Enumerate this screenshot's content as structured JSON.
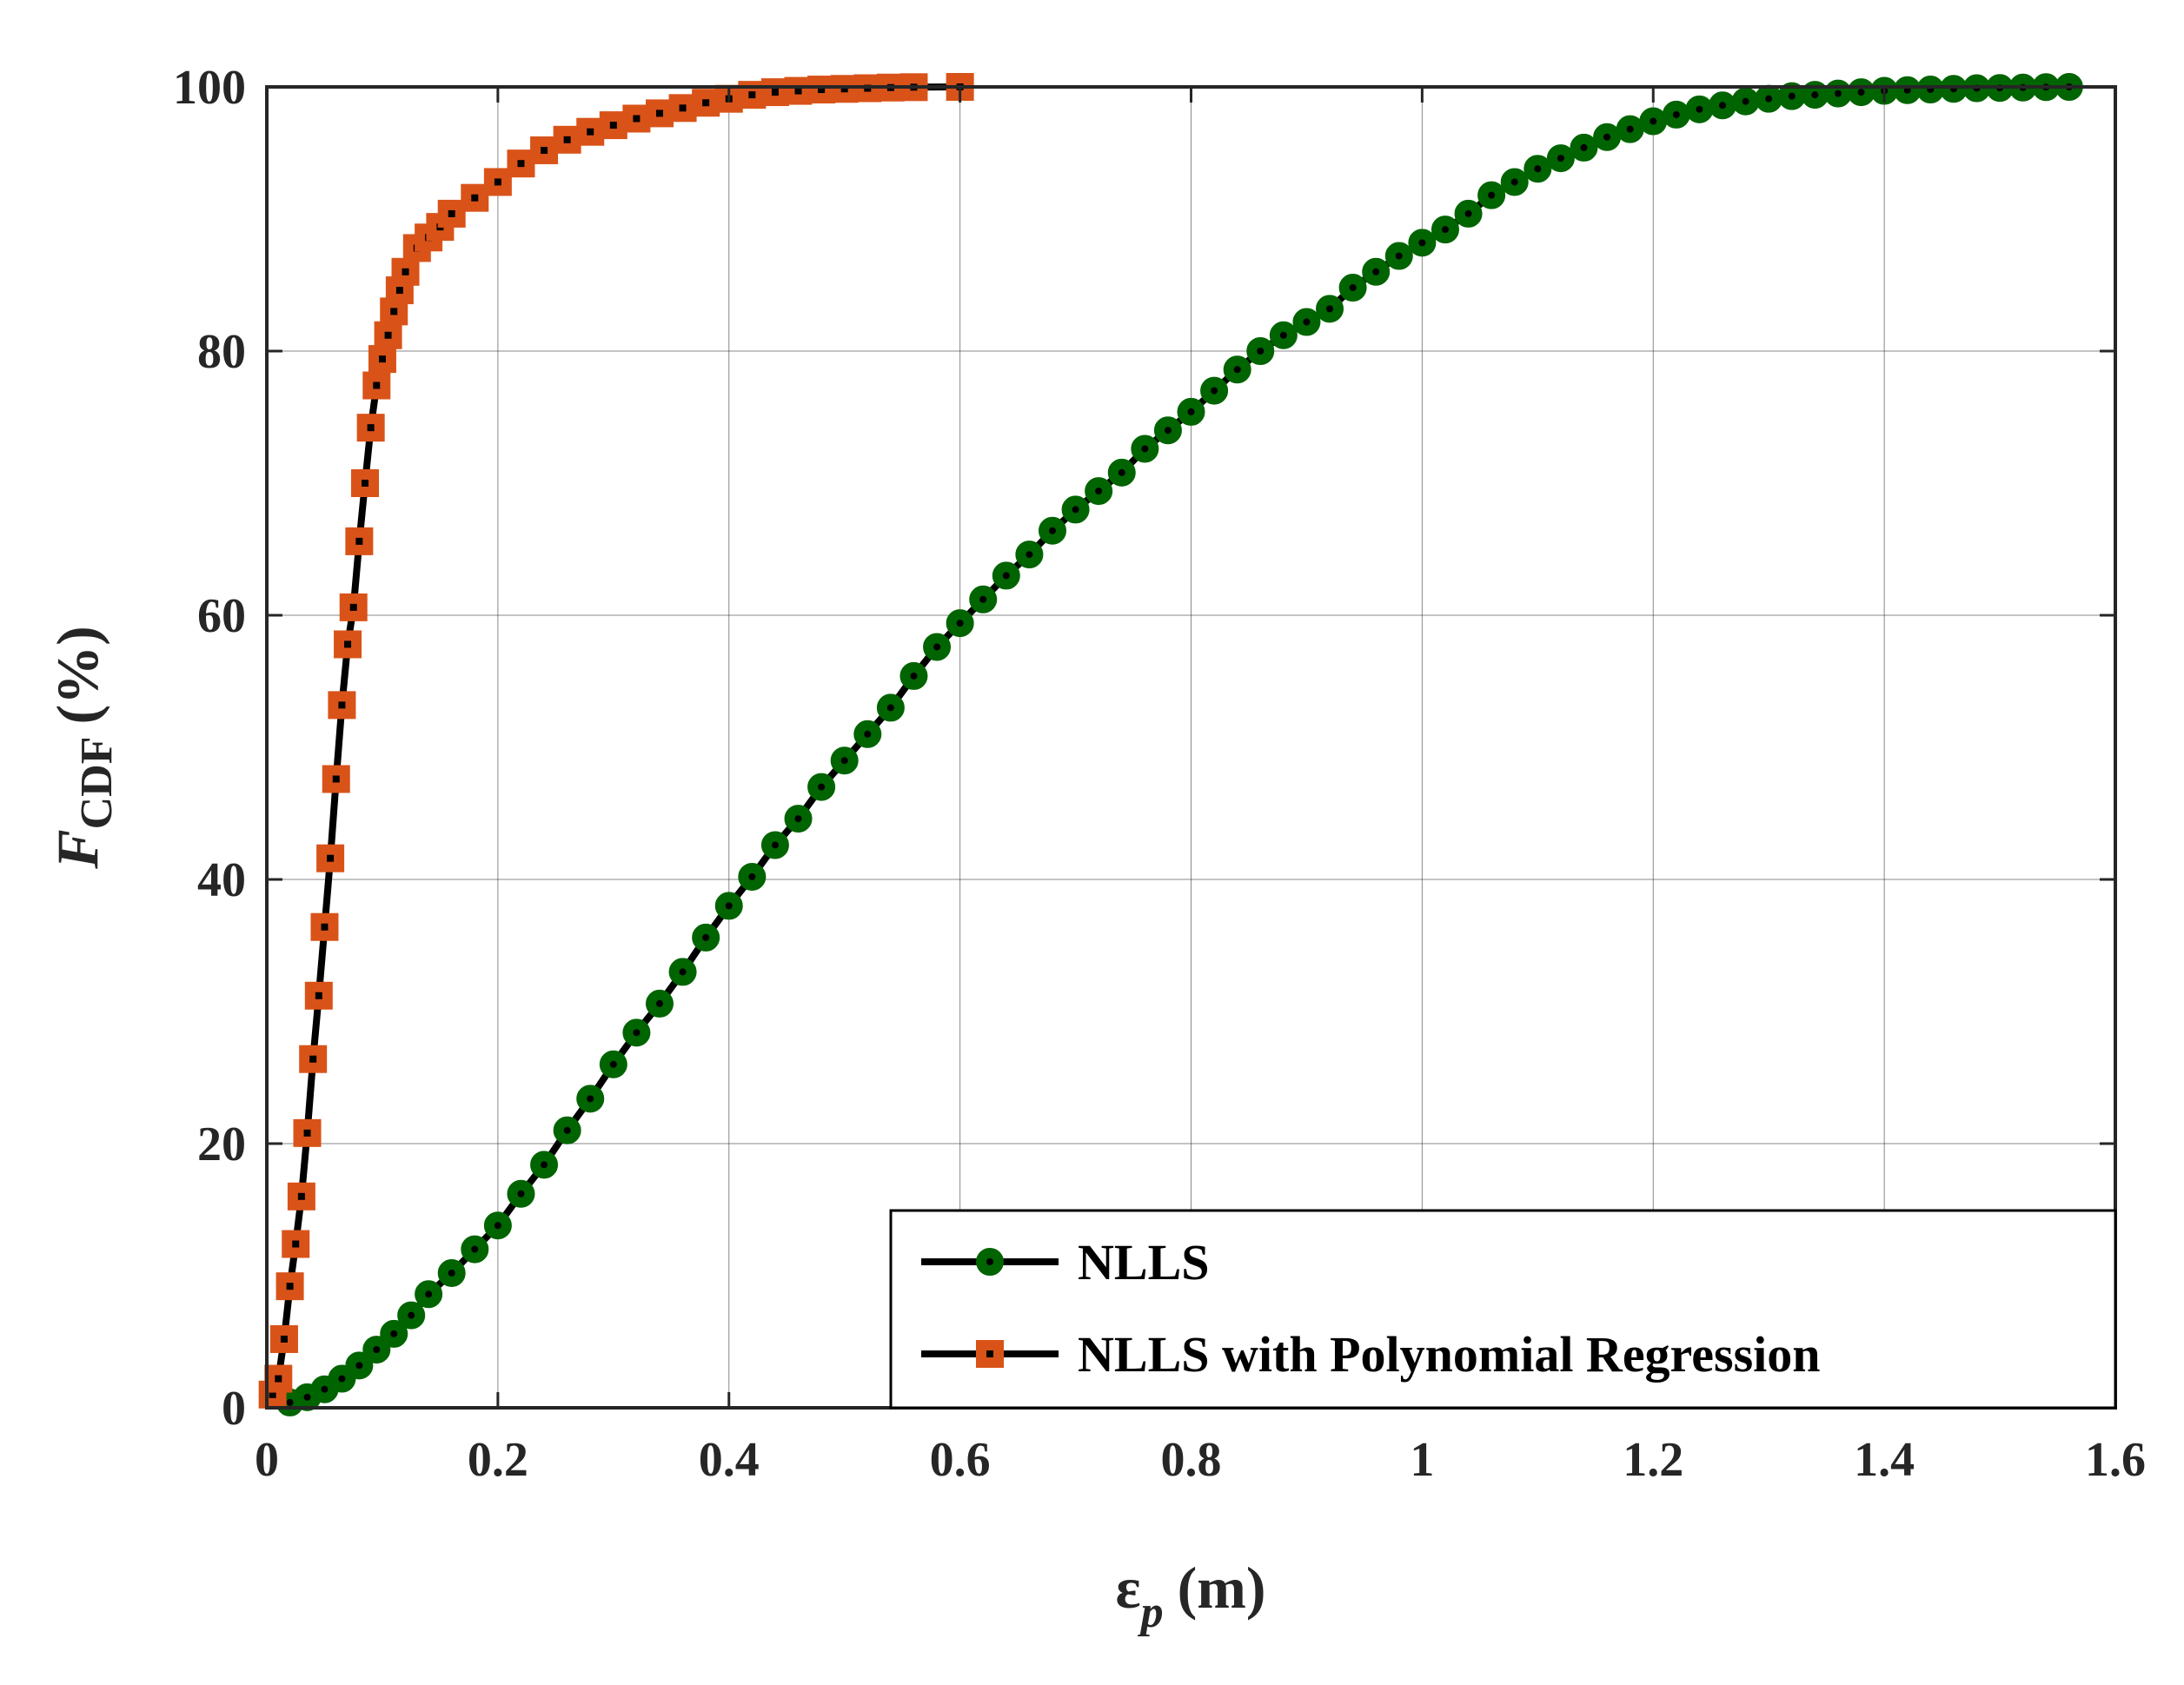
{
  "chart_data": {
    "type": "line",
    "title": "",
    "xlabel": {
      "symbol": "ε",
      "subscript": "p",
      "unit": "(m)"
    },
    "ylabel": {
      "symbol": "F",
      "subscript": "CDF",
      "unit": "(%)"
    },
    "xlim": [
      0,
      1.6
    ],
    "ylim": [
      0,
      100
    ],
    "xticks": [
      0,
      0.2,
      0.4,
      0.6,
      0.8,
      1,
      1.2,
      1.4,
      1.6
    ],
    "xtick_labels": [
      "0",
      "0.2",
      "0.4",
      "0.6",
      "0.8",
      "1",
      "1.2",
      "1.4",
      "1.6"
    ],
    "yticks": [
      0,
      20,
      40,
      60,
      80,
      100
    ],
    "ytick_labels": [
      "0",
      "20",
      "40",
      "60",
      "80",
      "100"
    ],
    "grid": true,
    "legend_position": "bottom-right",
    "series": [
      {
        "name": "NLLS",
        "marker": "circle",
        "line_color": "#000000",
        "marker_color": "#006400",
        "x": [
          0.02,
          0.035,
          0.05,
          0.065,
          0.08,
          0.095,
          0.11,
          0.125,
          0.14,
          0.16,
          0.18,
          0.2,
          0.22,
          0.24,
          0.26,
          0.28,
          0.3,
          0.32,
          0.34,
          0.36,
          0.38,
          0.4,
          0.42,
          0.44,
          0.46,
          0.48,
          0.5,
          0.52,
          0.54,
          0.56,
          0.58,
          0.6,
          0.62,
          0.64,
          0.66,
          0.68,
          0.7,
          0.72,
          0.74,
          0.76,
          0.78,
          0.8,
          0.82,
          0.84,
          0.86,
          0.88,
          0.9,
          0.92,
          0.94,
          0.96,
          0.98,
          1.0,
          1.02,
          1.04,
          1.06,
          1.08,
          1.1,
          1.12,
          1.14,
          1.16,
          1.18,
          1.2,
          1.22,
          1.24,
          1.26,
          1.28,
          1.3,
          1.32,
          1.34,
          1.36,
          1.38,
          1.4,
          1.42,
          1.44,
          1.46,
          1.48,
          1.5,
          1.52,
          1.54,
          1.56
        ],
        "y": [
          0.4,
          0.8,
          1.4,
          2.2,
          3.2,
          4.4,
          5.6,
          7.0,
          8.6,
          10.2,
          12.0,
          13.8,
          16.2,
          18.4,
          21.0,
          23.4,
          26.0,
          28.4,
          30.6,
          33.0,
          35.6,
          38.0,
          40.2,
          42.6,
          44.6,
          47.0,
          49.0,
          51.0,
          53.0,
          55.4,
          57.6,
          59.4,
          61.2,
          63.0,
          64.6,
          66.4,
          68.0,
          69.4,
          70.8,
          72.6,
          74.0,
          75.4,
          77.0,
          78.6,
          80.0,
          81.2,
          82.2,
          83.2,
          84.8,
          86.0,
          87.2,
          88.2,
          89.2,
          90.4,
          91.8,
          92.8,
          93.8,
          94.6,
          95.4,
          96.2,
          96.8,
          97.4,
          97.9,
          98.3,
          98.6,
          98.9,
          99.1,
          99.3,
          99.4,
          99.5,
          99.6,
          99.7,
          99.75,
          99.8,
          99.85,
          99.9,
          99.92,
          99.95,
          99.98,
          100
        ]
      },
      {
        "name": "NLLS with Polynomial Regression",
        "marker": "square",
        "line_color": "#000000",
        "marker_color": "#D95319",
        "x": [
          0.005,
          0.01,
          0.015,
          0.02,
          0.025,
          0.03,
          0.035,
          0.04,
          0.045,
          0.05,
          0.055,
          0.06,
          0.065,
          0.07,
          0.075,
          0.08,
          0.085,
          0.09,
          0.095,
          0.1,
          0.105,
          0.11,
          0.115,
          0.12,
          0.13,
          0.14,
          0.15,
          0.16,
          0.18,
          0.2,
          0.22,
          0.24,
          0.26,
          0.28,
          0.3,
          0.32,
          0.34,
          0.36,
          0.38,
          0.4,
          0.42,
          0.44,
          0.46,
          0.48,
          0.5,
          0.52,
          0.54,
          0.56,
          0.6
        ],
        "y": [
          1.0,
          2.2,
          5.2,
          9.2,
          12.4,
          16.0,
          20.8,
          26.4,
          31.2,
          36.4,
          41.6,
          47.6,
          53.2,
          57.8,
          60.6,
          65.6,
          70.0,
          74.2,
          77.4,
          79.4,
          81.2,
          83.0,
          84.6,
          86.0,
          87.8,
          88.6,
          89.4,
          90.4,
          91.6,
          92.8,
          94.2,
          95.2,
          96.0,
          96.6,
          97.1,
          97.6,
          98.0,
          98.4,
          98.8,
          99.1,
          99.4,
          99.6,
          99.7,
          99.8,
          99.85,
          99.9,
          99.95,
          99.98,
          100
        ]
      }
    ]
  }
}
